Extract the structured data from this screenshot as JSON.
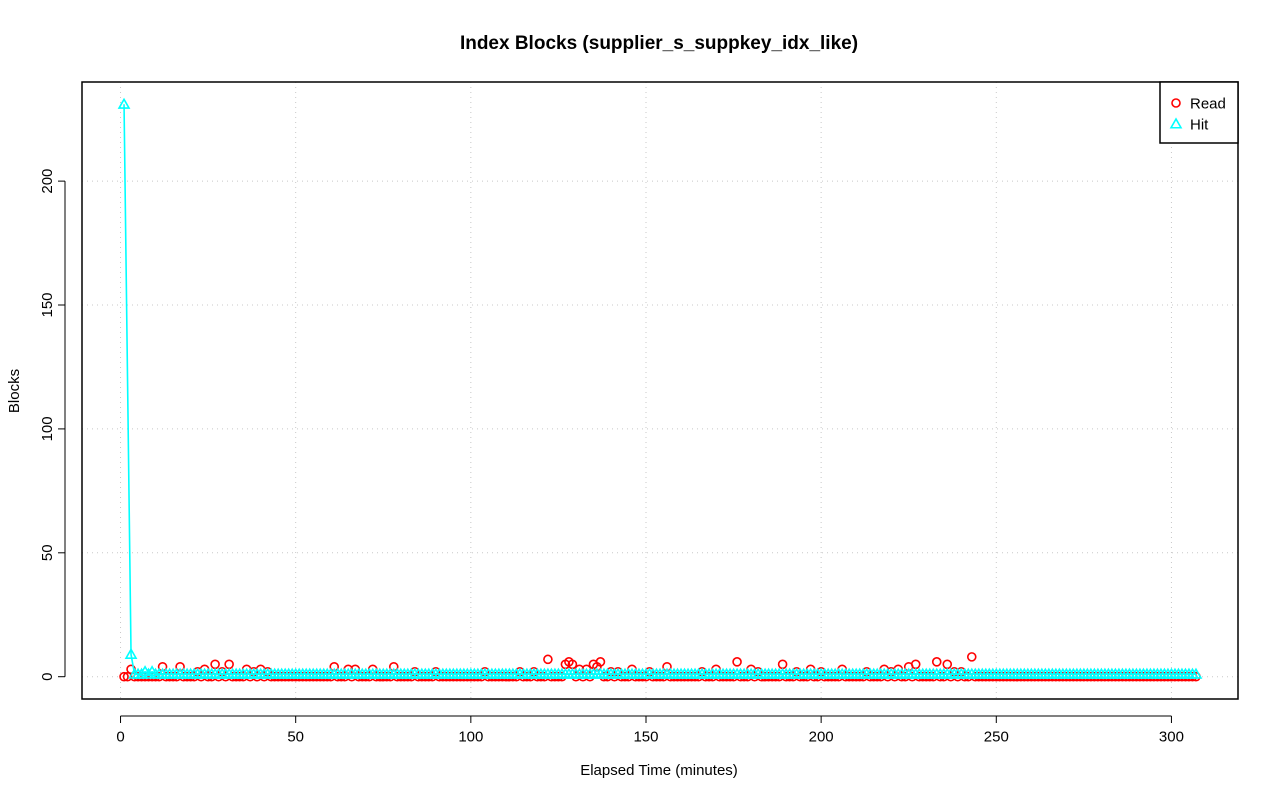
{
  "chart_data": {
    "type": "line",
    "title": "Index Blocks (supplier_s_suppkey_idx_like)",
    "xlabel": "Elapsed Time (minutes)",
    "ylabel": "Blocks",
    "xlim": [
      -11,
      319
    ],
    "ylim": [
      -9,
      240
    ],
    "x_ticks": [
      0,
      50,
      100,
      150,
      200,
      250,
      300
    ],
    "y_ticks": [
      0,
      50,
      100,
      150,
      200
    ],
    "grid": true,
    "legend_position": "top-right",
    "series": [
      {
        "name": "Read",
        "color": "#ff0000",
        "marker": "circle",
        "line": false,
        "points": [
          [
            1,
            0
          ],
          [
            3,
            3
          ],
          [
            12,
            4
          ],
          [
            17,
            4
          ],
          [
            22,
            2
          ],
          [
            24,
            3
          ],
          [
            27,
            5
          ],
          [
            29,
            2
          ],
          [
            31,
            5
          ],
          [
            36,
            3
          ],
          [
            38,
            2
          ],
          [
            40,
            3
          ],
          [
            42,
            2
          ],
          [
            61,
            4
          ],
          [
            65,
            3
          ],
          [
            67,
            3
          ],
          [
            72,
            3
          ],
          [
            78,
            4
          ],
          [
            84,
            2
          ],
          [
            90,
            2
          ],
          [
            104,
            2
          ],
          [
            114,
            2
          ],
          [
            118,
            2
          ],
          [
            122,
            7
          ],
          [
            127,
            5
          ],
          [
            128,
            6
          ],
          [
            129,
            5
          ],
          [
            131,
            3
          ],
          [
            133,
            3
          ],
          [
            135,
            5
          ],
          [
            136,
            4
          ],
          [
            137,
            6
          ],
          [
            140,
            2
          ],
          [
            142,
            2
          ],
          [
            146,
            3
          ],
          [
            151,
            2
          ],
          [
            156,
            4
          ],
          [
            166,
            2
          ],
          [
            170,
            3
          ],
          [
            176,
            6
          ],
          [
            180,
            3
          ],
          [
            182,
            2
          ],
          [
            189,
            5
          ],
          [
            193,
            2
          ],
          [
            197,
            3
          ],
          [
            200,
            2
          ],
          [
            206,
            3
          ],
          [
            213,
            2
          ],
          [
            218,
            3
          ],
          [
            220,
            2
          ],
          [
            222,
            3
          ],
          [
            225,
            4
          ],
          [
            227,
            5
          ],
          [
            233,
            6
          ],
          [
            236,
            5
          ],
          [
            238,
            2
          ],
          [
            240,
            2
          ],
          [
            243,
            8
          ]
        ],
        "baseline": {
          "from": 1,
          "to": 307,
          "value": 0
        }
      },
      {
        "name": "Hit",
        "color": "#00ffff",
        "marker": "triangle",
        "line": true,
        "points": [
          [
            1,
            231
          ],
          [
            3,
            9
          ],
          [
            4,
            1
          ],
          [
            5,
            1
          ],
          [
            6,
            1
          ],
          [
            7,
            2
          ],
          [
            8,
            1
          ],
          [
            9,
            2
          ],
          [
            10,
            1
          ],
          [
            11,
            1
          ],
          [
            12,
            1
          ]
        ],
        "baseline": {
          "from": 13,
          "to": 307,
          "value": 1,
          "step": 1
        }
      }
    ]
  }
}
